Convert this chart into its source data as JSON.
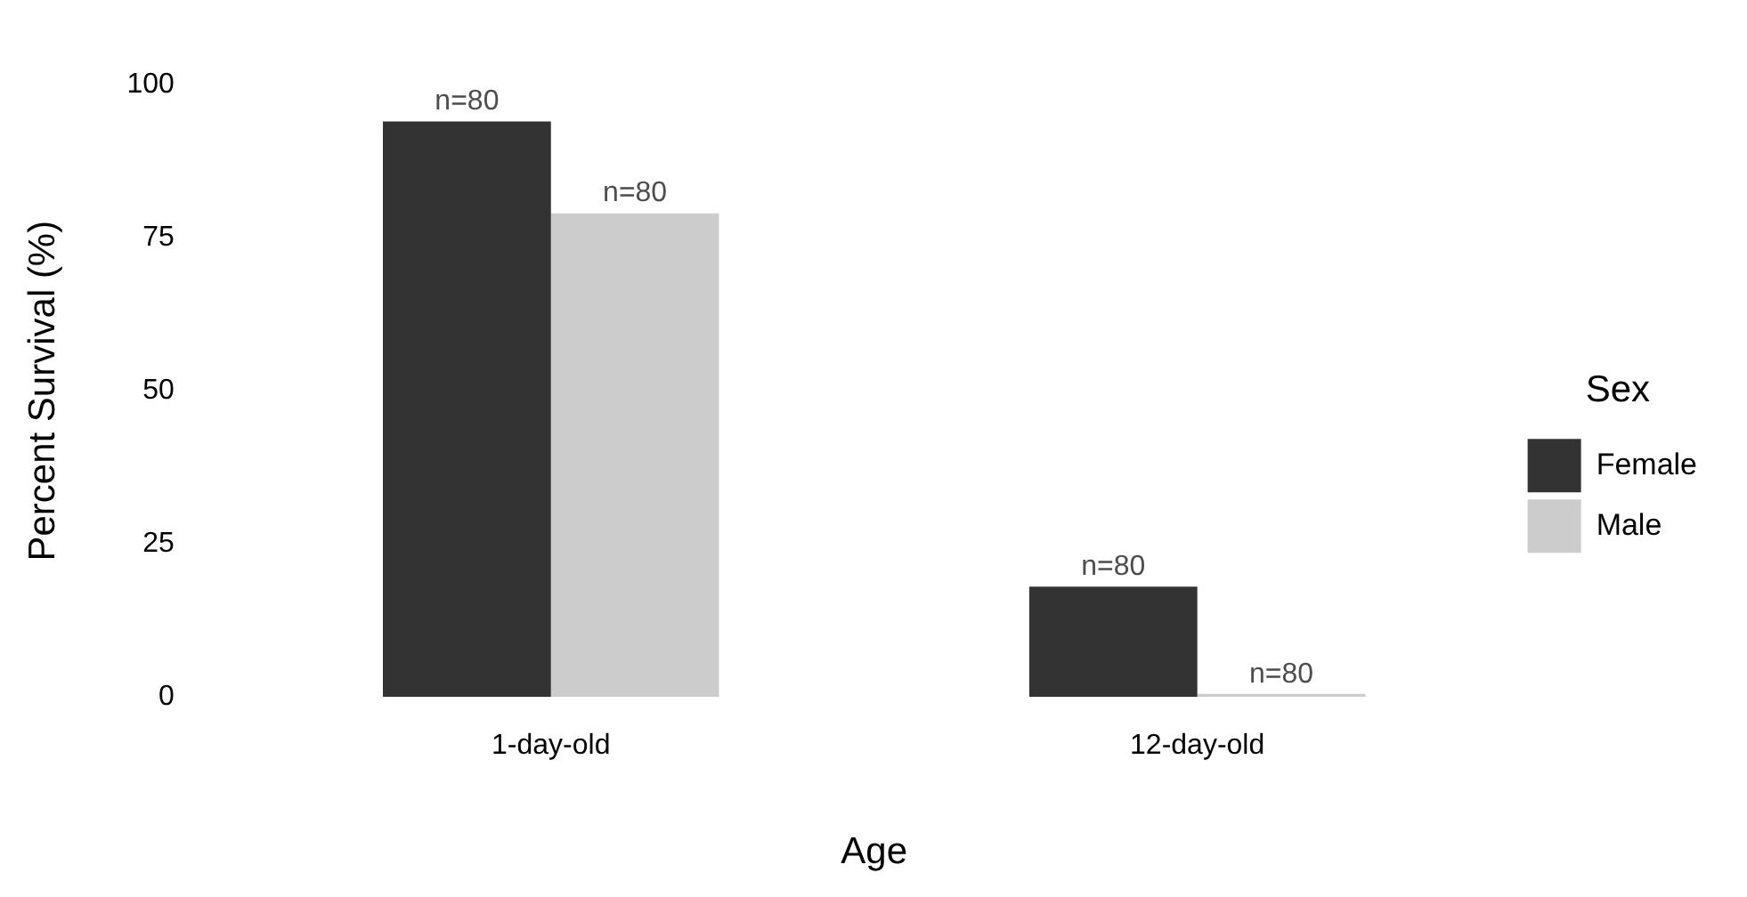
{
  "chart_data": {
    "type": "bar",
    "xlabel": "Age",
    "ylabel": "Percent Survival (%)",
    "legend_title": "Sex",
    "categories": [
      "1-day-old",
      "12-day-old"
    ],
    "series": [
      {
        "name": "Female",
        "color": "#333333",
        "values": [
          94,
          18
        ]
      },
      {
        "name": "Male",
        "color": "#cccccc",
        "values": [
          79,
          0.5
        ]
      }
    ],
    "annotations": [
      {
        "text": "n=80",
        "x": "1-day-old",
        "y": 94
      },
      {
        "text": "n=80",
        "x": "1-day-old",
        "y": 79
      },
      {
        "text": "n=80",
        "x": "12-day-old",
        "y": 18
      },
      {
        "text": "n=80",
        "x": "12-day-old",
        "y": 0.5
      }
    ],
    "ylim": [
      0,
      100
    ],
    "yticks": [
      0,
      25,
      50,
      75,
      100
    ],
    "grid": false,
    "legend": "right"
  }
}
